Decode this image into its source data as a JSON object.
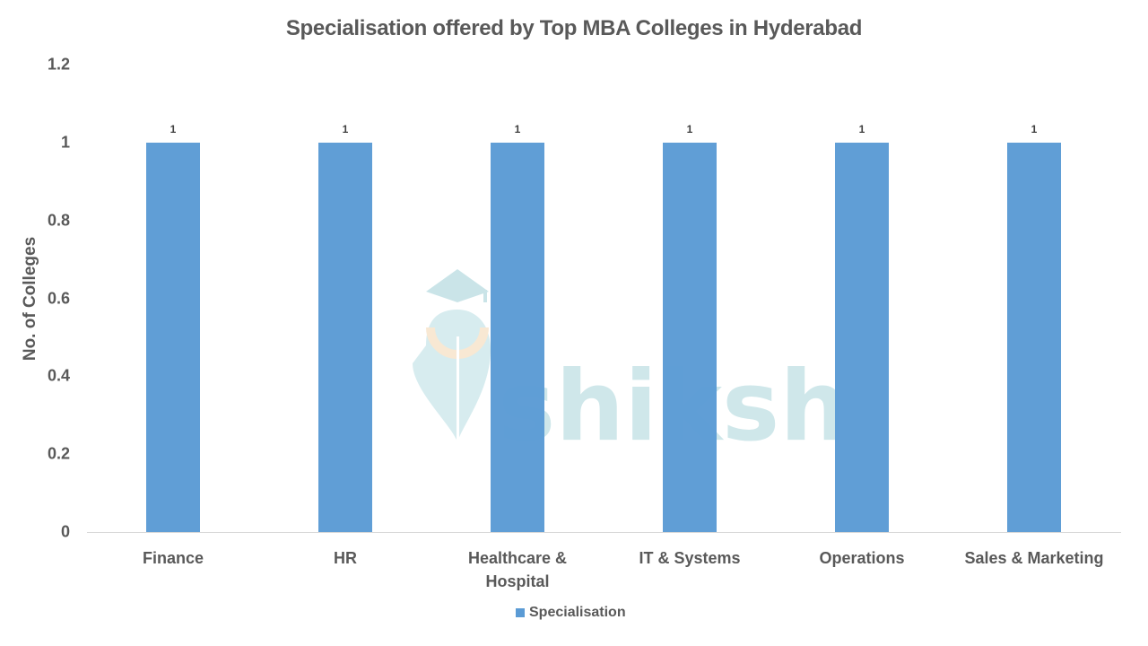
{
  "chart_data": {
    "type": "bar",
    "title": "Specialisation offered by Top MBA Colleges in Hyderabad",
    "xlabel": "",
    "ylabel": "No. of Colleges",
    "categories": [
      "Finance",
      "HR",
      "Healthcare & Hospital",
      "IT & Systems",
      "Operations",
      "Sales & Marketing"
    ],
    "category_lines": [
      [
        "Finance"
      ],
      [
        "HR"
      ],
      [
        "Healthcare &",
        "Hospital"
      ],
      [
        "IT & Systems"
      ],
      [
        "Operations"
      ],
      [
        "Sales & Marketing"
      ]
    ],
    "series": [
      {
        "name": "Specialisation",
        "values": [
          1,
          1,
          1,
          1,
          1,
          1
        ],
        "color": "#5b9bd5"
      }
    ],
    "data_labels": [
      "1",
      "1",
      "1",
      "1",
      "1",
      "1"
    ],
    "ylim": [
      0,
      1.2
    ],
    "yticks": [
      "0",
      "0.2",
      "0.4",
      "0.6",
      "0.8",
      "1",
      "1.2"
    ],
    "grid": false,
    "legend_position": "bottom"
  },
  "watermark": {
    "text": "shiksha"
  }
}
